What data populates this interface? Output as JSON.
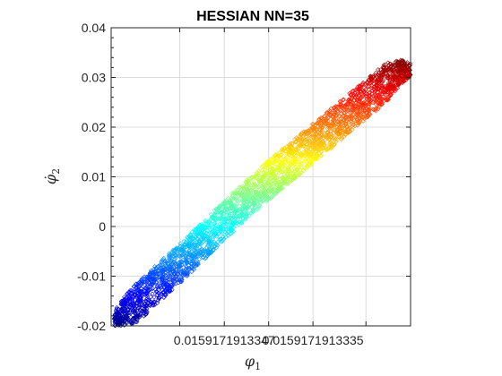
{
  "chart_data": {
    "type": "scatter",
    "title": "HESSIAN NN=35",
    "xlabel": "φ1",
    "ylabel": "φ̇2",
    "ylim": [
      -0.02,
      0.04
    ],
    "yticks": [
      -0.02,
      -0.01,
      0,
      0.01,
      0.02,
      0.03,
      0.04
    ],
    "ytick_labels": [
      "-0.02",
      "-0.01",
      "0",
      "0.01",
      "0.02",
      "0.03",
      "0.04"
    ],
    "xticks_normalized": [
      0.229,
      0.378,
      0.526,
      0.674,
      0.851
    ],
    "xtick_labels": [
      "",
      "0.0159171913347",
      "",
      "0.0159171913335",
      ""
    ],
    "grid": true,
    "marker": "diamond-open",
    "colormap": "jet",
    "color_by": "y",
    "series": [
      {
        "name": "",
        "points_normalized_x": [
          0.01,
          0.04,
          0.08,
          0.12,
          0.16,
          0.22,
          0.28,
          0.34,
          0.4,
          0.46,
          0.52,
          0.58,
          0.64,
          0.7,
          0.76,
          0.82,
          0.88,
          0.93,
          0.97,
          1.0
        ],
        "y_centerline": [
          -0.0185,
          -0.0172,
          -0.0155,
          -0.0135,
          -0.0112,
          -0.008,
          -0.0045,
          -0.001,
          0.0025,
          0.0058,
          0.009,
          0.012,
          0.015,
          0.018,
          0.021,
          0.024,
          0.027,
          0.0295,
          0.0312,
          0.0315
        ],
        "band_halfwidth": 0.004,
        "n_points": 3000
      }
    ]
  }
}
